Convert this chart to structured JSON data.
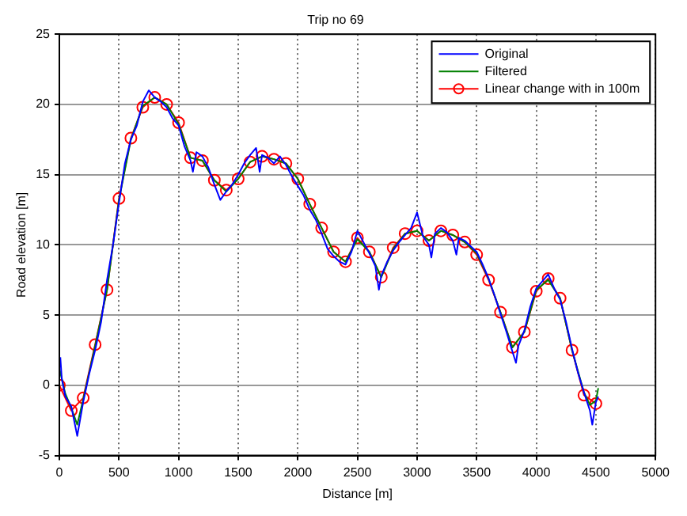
{
  "chart_data": {
    "type": "line",
    "title": "Trip no 69",
    "xlabel": "Distance [m]",
    "ylabel": "Road elevation [m]",
    "xlim": [
      0,
      5000
    ],
    "xticks": [
      0,
      500,
      1000,
      1500,
      2000,
      2500,
      3000,
      3500,
      4000,
      4500,
      5000
    ],
    "ylim": [
      -5,
      25
    ],
    "yticks": [
      -5,
      0,
      5,
      10,
      15,
      20,
      25
    ],
    "grid": true,
    "legend": "top right",
    "series": [
      {
        "name": "Original",
        "color": "#0000ff",
        "marker": "none",
        "x": [
          8,
          20,
          50,
          100,
          150,
          200,
          250,
          300,
          350,
          400,
          450,
          500,
          550,
          600,
          650,
          700,
          750,
          800,
          850,
          900,
          950,
          1000,
          1050,
          1100,
          1120,
          1150,
          1200,
          1250,
          1300,
          1350,
          1400,
          1450,
          1500,
          1550,
          1600,
          1650,
          1680,
          1700,
          1750,
          1800,
          1850,
          1900,
          1950,
          2000,
          2050,
          2100,
          2150,
          2200,
          2250,
          2300,
          2350,
          2400,
          2450,
          2500,
          2550,
          2600,
          2650,
          2680,
          2700,
          2750,
          2800,
          2850,
          2900,
          2950,
          3000,
          3050,
          3100,
          3120,
          3150,
          3200,
          3250,
          3300,
          3330,
          3350,
          3400,
          3450,
          3500,
          3550,
          3600,
          3650,
          3700,
          3750,
          3800,
          3830,
          3850,
          3900,
          3950,
          4000,
          4050,
          4100,
          4150,
          4200,
          4250,
          4300,
          4350,
          4400,
          4450,
          4470,
          4500,
          4520
        ],
        "values": [
          2.0,
          0.5,
          -0.8,
          -1.5,
          -3.6,
          -1.2,
          0.8,
          2.5,
          4.5,
          7.5,
          10,
          13,
          15.8,
          17.5,
          18.5,
          20.2,
          21.0,
          20.5,
          20.2,
          19.8,
          19.0,
          18.5,
          17.0,
          16.0,
          15.2,
          16.6,
          16.3,
          15.5,
          14.3,
          13.2,
          13.8,
          14.3,
          15.0,
          15.8,
          16.4,
          16.9,
          15.2,
          16.4,
          16.2,
          15.8,
          16.3,
          15.7,
          14.9,
          14.2,
          13.5,
          12.5,
          11.8,
          10.8,
          9.7,
          9.2,
          8.8,
          8.6,
          9.5,
          11.0,
          10.2,
          9.4,
          8.5,
          6.8,
          7.8,
          8.8,
          9.6,
          10.2,
          10.7,
          11.2,
          12.3,
          10.6,
          10.0,
          9.1,
          10.8,
          11.2,
          10.9,
          10.3,
          9.3,
          10.5,
          10.3,
          9.9,
          9.5,
          8.6,
          7.6,
          6.4,
          5.1,
          3.8,
          2.4,
          1.6,
          2.8,
          3.9,
          5.6,
          6.9,
          7.4,
          7.9,
          6.9,
          6.1,
          4.5,
          2.6,
          0.9,
          -0.5,
          -1.8,
          -2.8,
          -1.2,
          -0.8
        ]
      },
      {
        "name": "Filtered",
        "color": "#008000",
        "marker": "none",
        "x": [
          0,
          50,
          100,
          150,
          200,
          300,
          400,
          500,
          600,
          700,
          800,
          900,
          1000,
          1100,
          1200,
          1300,
          1400,
          1500,
          1600,
          1700,
          1800,
          1900,
          2000,
          2100,
          2200,
          2300,
          2400,
          2500,
          2600,
          2700,
          2800,
          2900,
          3000,
          3100,
          3200,
          3300,
          3400,
          3500,
          3600,
          3700,
          3800,
          3900,
          4000,
          4100,
          4200,
          4300,
          4400,
          4450,
          4500,
          4520
        ],
        "values": [
          1.2,
          -0.6,
          -1.6,
          -2.8,
          -1.0,
          2.8,
          6.8,
          13.2,
          17.5,
          19.9,
          20.5,
          20.0,
          18.6,
          16.2,
          16.0,
          14.6,
          13.8,
          14.7,
          15.9,
          16.3,
          16.1,
          15.8,
          14.7,
          12.9,
          11.2,
          9.5,
          8.8,
          10.4,
          9.5,
          7.7,
          9.7,
          10.8,
          11.0,
          10.3,
          11.0,
          10.7,
          10.2,
          9.4,
          7.6,
          5.2,
          2.7,
          3.8,
          6.8,
          7.5,
          6.2,
          2.5,
          -0.5,
          -1.4,
          -1.1,
          -0.2
        ]
      },
      {
        "name": "Linear change with in 100m",
        "color": "#ff0000",
        "marker": "circle",
        "x": [
          0,
          100,
          200,
          300,
          400,
          500,
          600,
          700,
          800,
          900,
          1000,
          1100,
          1200,
          1300,
          1400,
          1500,
          1600,
          1700,
          1800,
          1900,
          2000,
          2100,
          2200,
          2300,
          2400,
          2500,
          2600,
          2700,
          2800,
          2900,
          3000,
          3100,
          3200,
          3300,
          3400,
          3500,
          3600,
          3700,
          3800,
          3900,
          4000,
          4100,
          4200,
          4300,
          4400,
          4500
        ],
        "values": [
          0,
          -1.8,
          -0.9,
          2.9,
          6.8,
          13.3,
          17.6,
          19.8,
          20.5,
          20.0,
          18.7,
          16.2,
          16.0,
          14.6,
          13.9,
          14.7,
          15.9,
          16.3,
          16.1,
          15.8,
          14.7,
          12.9,
          11.2,
          9.5,
          8.8,
          10.5,
          9.5,
          7.7,
          9.8,
          10.8,
          11.0,
          10.3,
          11.0,
          10.7,
          10.2,
          9.3,
          7.5,
          5.2,
          2.7,
          3.8,
          6.7,
          7.6,
          6.2,
          2.5,
          -0.7,
          -1.3
        ]
      }
    ]
  }
}
